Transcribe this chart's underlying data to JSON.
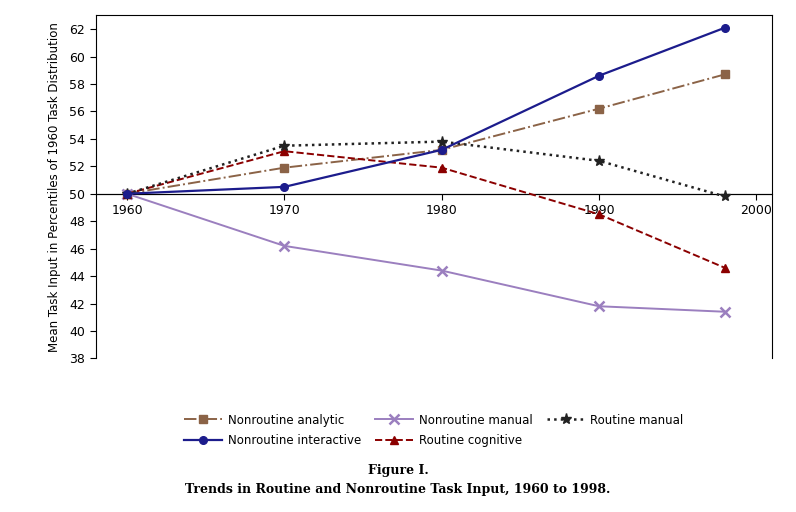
{
  "years": [
    1960,
    1970,
    1980,
    1990,
    1998
  ],
  "nonroutine_analytic": [
    50.0,
    51.9,
    53.2,
    56.2,
    58.7
  ],
  "nonroutine_interactive": [
    50.0,
    50.5,
    53.2,
    58.6,
    62.1
  ],
  "nonroutine_manual": [
    50.0,
    46.2,
    44.4,
    41.8,
    41.4
  ],
  "routine_cognitive": [
    50.0,
    53.1,
    51.9,
    48.5,
    44.6
  ],
  "routine_manual": [
    50.0,
    53.5,
    53.8,
    52.4,
    49.8
  ],
  "ylabel": "Mean Task Input in Percentiles of 1960 Task Distribution",
  "ylim": [
    38,
    63
  ],
  "xlim": [
    1958,
    2001
  ],
  "yticks": [
    38,
    40,
    42,
    44,
    46,
    48,
    50,
    52,
    54,
    56,
    58,
    60,
    62
  ],
  "xticks": [
    1960,
    1970,
    1980,
    1990,
    2000
  ],
  "hline_y": 50.0,
  "fig_title": "Figure I.",
  "fig_subtitle": "Trends in Routine and Nonroutine Task Input, 1960 to 1998.",
  "color_analytic": "#8B6347",
  "color_interactive": "#1C1C8C",
  "color_manual": "#9B7FBF",
  "color_routine_cog": "#8B0000",
  "color_routine_man": "#222222"
}
